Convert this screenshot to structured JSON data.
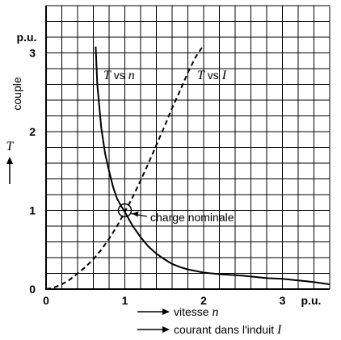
{
  "chart_data": {
    "type": "line",
    "x_unit": "p.u.",
    "y_unit": "p.u.",
    "xlim": [
      0,
      3.6
    ],
    "ylim": [
      0,
      3.6
    ],
    "x_ticks": [
      "0",
      "1",
      "2",
      "3"
    ],
    "y_ticks": [
      "0",
      "1",
      "2",
      "3"
    ],
    "ylabel_word": "couple",
    "ylabel_symbol": "T",
    "xlabel_lines": [
      {
        "text": "vitesse ",
        "symbol": "n"
      },
      {
        "text": "courant dans l'induit ",
        "symbol": "I"
      }
    ],
    "grid": true,
    "series": [
      {
        "name_symbol": "T",
        "name_middle": " vs ",
        "name_var": "n",
        "style": "solid",
        "x": [
          0.63,
          0.65,
          0.7,
          0.75,
          0.8,
          0.85,
          0.9,
          0.95,
          1.0,
          1.1,
          1.2,
          1.3,
          1.4,
          1.5,
          1.6,
          1.7,
          1.8,
          2.0,
          2.2,
          2.5,
          2.8,
          3.0,
          3.2,
          3.4,
          3.6
        ],
        "y": [
          3.08,
          2.6,
          2.05,
          1.72,
          1.5,
          1.3,
          1.15,
          1.06,
          0.98,
          0.8,
          0.66,
          0.54,
          0.45,
          0.38,
          0.32,
          0.28,
          0.25,
          0.21,
          0.19,
          0.17,
          0.14,
          0.13,
          0.11,
          0.09,
          0.06
        ]
      },
      {
        "name_symbol": "T",
        "name_middle": " vs ",
        "name_var": "I",
        "style": "dashed",
        "x": [
          0.0,
          0.1,
          0.2,
          0.3,
          0.4,
          0.5,
          0.6,
          0.7,
          0.8,
          0.9,
          1.0,
          1.1,
          1.2,
          1.3,
          1.4,
          1.5,
          1.6,
          1.7,
          1.8,
          1.9,
          2.0
        ],
        "y": [
          0.0,
          0.02,
          0.06,
          0.12,
          0.2,
          0.28,
          0.38,
          0.5,
          0.64,
          0.8,
          0.98,
          1.17,
          1.38,
          1.6,
          1.83,
          2.06,
          2.3,
          2.52,
          2.75,
          2.95,
          3.1
        ]
      }
    ],
    "annotation": {
      "text": "charge nominale",
      "x": 1.0,
      "y": 1.0
    }
  }
}
